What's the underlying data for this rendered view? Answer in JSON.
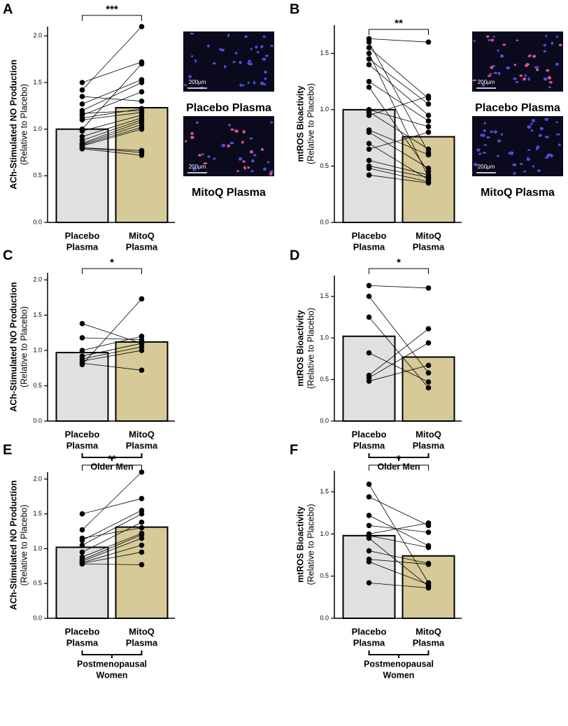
{
  "chart_data": [
    {
      "type": "bar",
      "panel_label": "A",
      "ylabel": [
        "ACh-Stimulated NO Production",
        "(Relative to Placebo)"
      ],
      "categories": [
        [
          "Placebo",
          "Plasma"
        ],
        [
          "MitoQ",
          "Plasma"
        ]
      ],
      "values": [
        1.0,
        1.23
      ],
      "colors": [
        "#dfe1de",
        "#d5ca98"
      ],
      "paired_values": [
        [
          1.5,
          1.72
        ],
        [
          1.42,
          2.1
        ],
        [
          1.35,
          1.3
        ],
        [
          1.27,
          1.53
        ],
        [
          1.2,
          1.5
        ],
        [
          1.17,
          1.2
        ],
        [
          1.15,
          1.4
        ],
        [
          1.12,
          1.22
        ],
        [
          1.1,
          1.18
        ],
        [
          1.0,
          1.7
        ],
        [
          0.98,
          1.15
        ],
        [
          0.92,
          1.12
        ],
        [
          0.88,
          1.1
        ],
        [
          0.85,
          1.08
        ],
        [
          0.84,
          1.05
        ],
        [
          0.83,
          1.02
        ],
        [
          0.82,
          1.0
        ],
        [
          0.8,
          0.77
        ],
        [
          0.8,
          0.75
        ],
        [
          0.79,
          0.72
        ]
      ],
      "significance": "***",
      "ylim": [
        0,
        2.1
      ],
      "yticks": [
        {
          "value": 0,
          "label": "0.0"
        },
        0.5,
        {
          "value": 1,
          "label": "1.0"
        },
        1.5,
        {
          "value": 2,
          "label": "2.0"
        }
      ]
    },
    {
      "type": "bar",
      "panel_label": "B",
      "ylabel": [
        "mtROS Bioactivity",
        "(Relative to Placebo)"
      ],
      "categories": [
        [
          "Placebo",
          "Plasma"
        ],
        [
          "MitoQ",
          "Plasma"
        ]
      ],
      "values": [
        1.0,
        0.76
      ],
      "colors": [
        "#dfe1de",
        "#d5ca98"
      ],
      "paired_values": [
        [
          1.63,
          1.6
        ],
        [
          1.6,
          0.62
        ],
        [
          1.55,
          1.1
        ],
        [
          1.5,
          0.4
        ],
        [
          1.45,
          1.05
        ],
        [
          1.4,
          0.95
        ],
        [
          1.25,
          0.9
        ],
        [
          1.2,
          0.45
        ],
        [
          1.0,
          0.85
        ],
        [
          0.98,
          0.65
        ],
        [
          0.95,
          1.12
        ],
        [
          0.82,
          0.6
        ],
        [
          0.8,
          0.48
        ],
        [
          0.7,
          0.38
        ],
        [
          0.65,
          0.8
        ],
        [
          0.55,
          0.42
        ],
        [
          0.5,
          0.4
        ],
        [
          0.48,
          0.36
        ],
        [
          0.42,
          0.35
        ]
      ],
      "significance": "**",
      "ylim": [
        0,
        1.75
      ],
      "yticks": [
        {
          "value": 0,
          "label": "0.0"
        },
        0.5,
        {
          "value": 1,
          "label": "1.0"
        },
        1.5
      ]
    },
    {
      "type": "bar",
      "panel_label": "C",
      "ylabel": [
        "ACh-Stimulated NO Production",
        "(Relative to Placebo)"
      ],
      "categories": [
        [
          "Placebo",
          "Plasma"
        ],
        [
          "MitoQ",
          "Plasma"
        ]
      ],
      "values": [
        0.97,
        1.12
      ],
      "colors": [
        "#dfe1de",
        "#d5ca98"
      ],
      "paired_values": [
        [
          1.38,
          1.1
        ],
        [
          1.18,
          1.15
        ],
        [
          1.0,
          1.2
        ],
        [
          0.92,
          1.1
        ],
        [
          0.88,
          1.05
        ],
        [
          0.85,
          1.0
        ],
        [
          0.82,
          0.72
        ],
        [
          0.8,
          1.73
        ]
      ],
      "significance": "*",
      "group_label": [
        "Older Men"
      ],
      "ylim": [
        0,
        2.1
      ],
      "yticks": [
        {
          "value": 0,
          "label": "0.0"
        },
        0.5,
        {
          "value": 1,
          "label": "1.0"
        },
        1.5,
        {
          "value": 2,
          "label": "2.0"
        }
      ]
    },
    {
      "type": "bar",
      "panel_label": "D",
      "ylabel": [
        "mtROS Bioactivity",
        "(Relative to Placebo)"
      ],
      "categories": [
        [
          "Placebo",
          "Plasma"
        ],
        [
          "MitoQ",
          "Plasma"
        ]
      ],
      "values": [
        1.02,
        0.77
      ],
      "colors": [
        "#dfe1de",
        "#d5ca98"
      ],
      "paired_values": [
        [
          1.63,
          1.6
        ],
        [
          1.5,
          0.58
        ],
        [
          1.25,
          0.4
        ],
        [
          0.82,
          0.47
        ],
        [
          0.55,
          1.11
        ],
        [
          0.52,
          0.94
        ],
        [
          0.48,
          0.67
        ]
      ],
      "significance": "*",
      "group_label": [
        "Older Men"
      ],
      "ylim": [
        0,
        1.75
      ],
      "yticks": [
        {
          "value": 0,
          "label": "0.0"
        },
        0.5,
        {
          "value": 1,
          "label": "1.0"
        },
        1.5
      ]
    },
    {
      "type": "bar",
      "panel_label": "E",
      "ylabel": [
        "ACh-Stimulated NO Production",
        "(Relative to Placebo)"
      ],
      "categories": [
        [
          "Placebo",
          "Plasma"
        ],
        [
          "MitoQ",
          "Plasma"
        ]
      ],
      "values": [
        1.02,
        1.31
      ],
      "colors": [
        "#dfe1de",
        "#d5ca98"
      ],
      "paired_values": [
        [
          1.5,
          1.72
        ],
        [
          1.27,
          2.1
        ],
        [
          1.15,
          1.3
        ],
        [
          1.12,
          1.55
        ],
        [
          1.05,
          1.5
        ],
        [
          0.95,
          1.38
        ],
        [
          0.88,
          1.22
        ],
        [
          0.84,
          1.2
        ],
        [
          0.82,
          1.15
        ],
        [
          0.8,
          1.05
        ],
        [
          0.79,
          0.95
        ],
        [
          0.78,
          0.77
        ]
      ],
      "significance": "**",
      "group_label": [
        "Postmenopausal",
        "Women"
      ],
      "ylim": [
        0,
        2.1
      ],
      "yticks": [
        {
          "value": 0,
          "label": "0.0"
        },
        0.5,
        {
          "value": 1,
          "label": "1.0"
        },
        1.5,
        {
          "value": 2,
          "label": "2.0"
        }
      ]
    },
    {
      "type": "bar",
      "panel_label": "F",
      "ylabel": [
        "mtROS Bioactivity",
        "(Relative to Placebo)"
      ],
      "categories": [
        [
          "Placebo",
          "Plasma"
        ],
        [
          "MitoQ",
          "Plasma"
        ]
      ],
      "values": [
        0.98,
        0.74
      ],
      "colors": [
        "#dfe1de",
        "#d5ca98"
      ],
      "paired_values": [
        [
          1.59,
          0.42
        ],
        [
          1.44,
          1.1
        ],
        [
          1.22,
          0.86
        ],
        [
          1.1,
          1.02
        ],
        [
          1.0,
          1.13
        ],
        [
          0.98,
          0.84
        ],
        [
          0.95,
          0.38
        ],
        [
          0.8,
          0.65
        ],
        [
          0.7,
          0.64
        ],
        [
          0.67,
          0.4
        ],
        [
          0.42,
          0.36
        ]
      ],
      "significance": "*",
      "group_label": [
        "Postmenopausal",
        "Women"
      ],
      "ylim": [
        0,
        1.75
      ],
      "yticks": [
        {
          "value": 0,
          "label": "0.0"
        },
        0.5,
        {
          "value": 1,
          "label": "1.0"
        },
        1.5
      ]
    }
  ],
  "micrographs": [
    {
      "caption": "Placebo Plasma",
      "scale": "200μm"
    },
    {
      "caption": "MitoQ Plasma",
      "scale": "200μm"
    },
    {
      "caption": "Placebo Plasma",
      "scale": "200μm"
    },
    {
      "caption": "MitoQ Plasma",
      "scale": "200μm"
    }
  ]
}
